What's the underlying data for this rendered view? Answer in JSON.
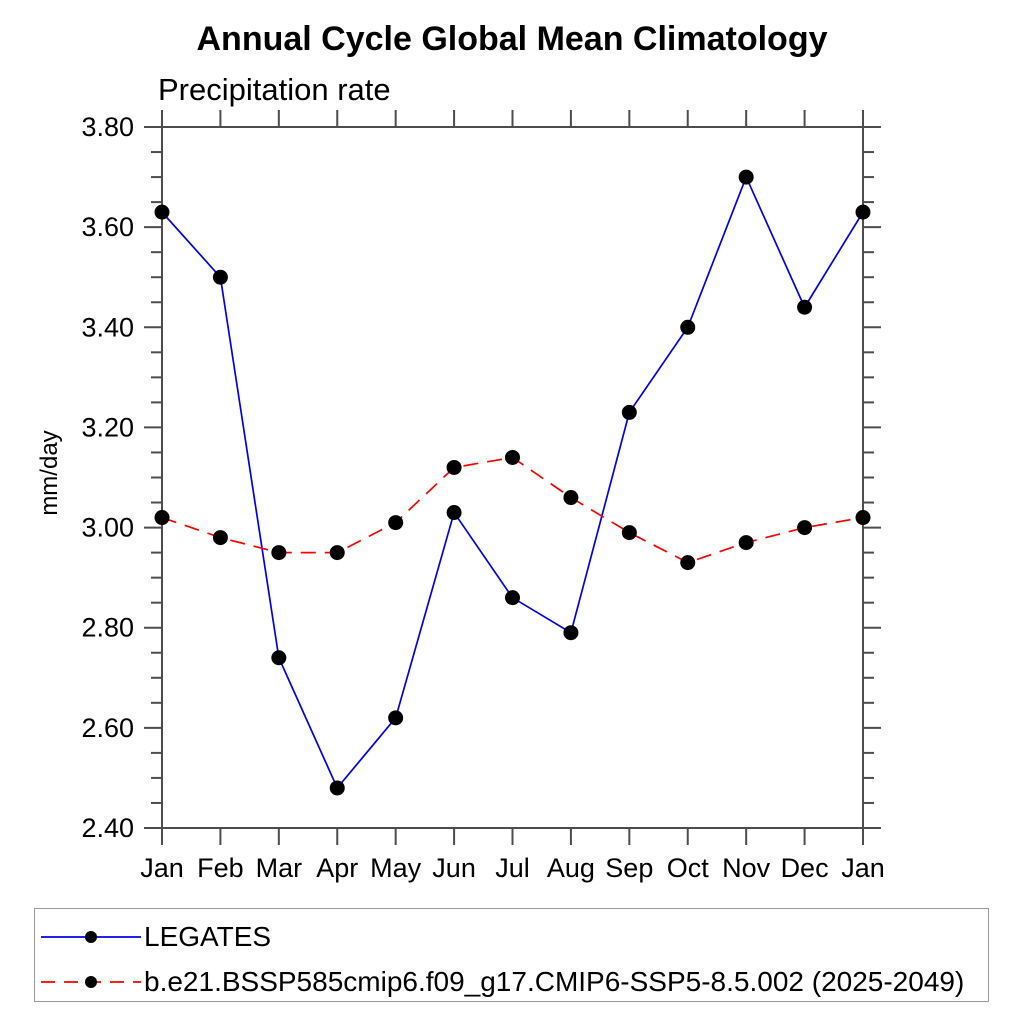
{
  "chart_data": {
    "type": "line",
    "title": "Annual Cycle Global Mean Climatology",
    "subtitle": "Precipitation rate",
    "ylabel": "mm/day",
    "categories": [
      "Jan",
      "Feb",
      "Mar",
      "Apr",
      "May",
      "Jun",
      "Jul",
      "Aug",
      "Sep",
      "Oct",
      "Nov",
      "Dec",
      "Jan"
    ],
    "ylim": [
      2.4,
      3.8
    ],
    "ytick_major_step": 0.2,
    "ytick_minor_step": 0.05,
    "ytick_labels": [
      "2.40",
      "2.60",
      "2.80",
      "3.00",
      "3.20",
      "3.40",
      "3.60",
      "3.80"
    ],
    "grid": false,
    "legend_position": "bottom",
    "axis_color": "#4d4d4d",
    "text_color": "#000000",
    "series": [
      {
        "name": "LEGATES",
        "color": "#0000ee",
        "line_style": "solid",
        "marker": "filled-circle",
        "marker_color": "#000000",
        "values": [
          3.63,
          3.5,
          2.74,
          2.48,
          2.62,
          3.03,
          2.86,
          2.79,
          3.23,
          3.4,
          3.7,
          3.44,
          3.63
        ]
      },
      {
        "name": "b.e21.BSSP585cmip6.f09_g17.CMIP6-SSP5-8.5.002 (2025-2049)",
        "color": "#ff0000",
        "line_style": "dashed",
        "marker": "filled-circle",
        "marker_color": "#000000",
        "values": [
          3.02,
          2.98,
          2.95,
          2.95,
          3.01,
          3.12,
          3.14,
          3.06,
          2.99,
          2.93,
          2.97,
          3.0,
          3.02
        ]
      }
    ]
  }
}
